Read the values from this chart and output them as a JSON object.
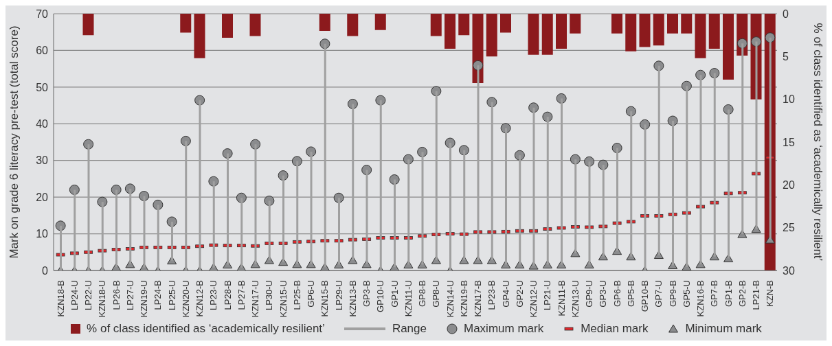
{
  "chart_data": {
    "type": "scatter",
    "ylabel": "Mark on grade 6 literacy pre-test (total score)",
    "y2label": "% of class identified as ‘academically resilient’",
    "categories": [
      "KZN18-B",
      "LP24-U",
      "LP22-U",
      "KZN18-U",
      "LP26-B",
      "LP27-U",
      "KZN19-U",
      "LP24-B",
      "LP25-U",
      "KZN20-U",
      "KZN12-B",
      "LP23-U",
      "LP28-B",
      "LP27-B",
      "KZN17-U",
      "LP30-U",
      "KZN15-U",
      "LP25-B",
      "GP6-U",
      "KZN15-B",
      "LP29-U",
      "KZN13-B",
      "GP3-B",
      "GP10-U",
      "GP1-U",
      "KZN11-U",
      "GP8-B",
      "GP8-U",
      "KZN14-U",
      "KZN19-B",
      "KZN17-B",
      "LP23-B",
      "GP4-U",
      "GP2-U",
      "KZN12-U",
      "LP21-U",
      "KZN11-B",
      "KZN13-U",
      "GP9-U",
      "GP3-U",
      "GP6-B",
      "GP5-B",
      "GP10-B",
      "GP7-U",
      "GP9-B",
      "GP5-U",
      "KZN16-B",
      "GP7-B",
      "GP1-B",
      "GP2-B",
      "LP21-B",
      "KZN-B"
    ],
    "series": [
      {
        "name": "% of class identified as ‘academically resilient’",
        "type": "bar",
        "axis": "y2",
        "color": "#8c1a1d",
        "values": [
          null,
          null,
          2.5,
          null,
          null,
          null,
          null,
          null,
          null,
          2.2,
          5.2,
          null,
          2.8,
          null,
          2.6,
          null,
          null,
          null,
          null,
          2.0,
          null,
          2.6,
          null,
          1.9,
          null,
          null,
          null,
          2.6,
          4.1,
          2.5,
          8.1,
          5.0,
          2.2,
          null,
          4.8,
          4.8,
          4.1,
          2.3,
          null,
          null,
          2.3,
          4.4,
          3.9,
          3.7,
          2.3,
          2.3,
          5.2,
          4.1,
          7.7,
          4.9,
          10.0,
          30
        ]
      },
      {
        "name": "Range",
        "type": "bar",
        "color": "#a0a0a0",
        "base": [
          0,
          0,
          0,
          0,
          0.9,
          1.7,
          0.8,
          0,
          2.7,
          0,
          0,
          0.8,
          1.6,
          0.8,
          1.7,
          2.8,
          2.3,
          1.7,
          1.7,
          0.9,
          1.6,
          2.8,
          1.7,
          0,
          0.9,
          1.6,
          1.6,
          2.8,
          0,
          2.8,
          2.8,
          2.8,
          1.6,
          1.6,
          1.3,
          1.6,
          1.6,
          4.7,
          1.6,
          3.8,
          5.3,
          3.8,
          0,
          4.2,
          1.4,
          1.0,
          1.7,
          3.8,
          3.3,
          9.9,
          11.3,
          8.4
        ],
        "values": [
          12.2,
          22,
          34.4,
          18.7,
          21.1,
          20.6,
          19.5,
          17.9,
          10.6,
          35.3,
          46.4,
          23.5,
          30.3,
          19.0,
          32.7,
          16.2,
          23.6,
          28.1,
          30.7,
          60.9,
          18.2,
          42.6,
          25.7,
          46.4,
          23.9,
          28.7,
          30.7,
          46.1,
          34.8,
          30.0,
          53.1,
          43.1,
          37.2,
          29.8,
          43.1,
          40.3,
          45.3,
          25.6,
          28.1,
          25.0,
          28.1,
          39.6,
          39.8,
          51.6,
          39.4,
          49.3,
          51.6,
          50.0,
          40.6,
          52.0,
          51.1,
          55.1
        ]
      },
      {
        "name": "Maximum mark",
        "marker": "circle",
        "color": "#8b8c8e",
        "values": [
          12.2,
          22,
          34.4,
          18.7,
          22,
          22.3,
          20.3,
          17.9,
          13.3,
          35.3,
          46.4,
          24.3,
          31.9,
          19.8,
          34.4,
          19.0,
          25.9,
          29.8,
          32.4,
          61.8,
          19.8,
          45.4,
          27.4,
          46.4,
          24.8,
          30.3,
          32.3,
          48.9,
          34.8,
          32.8,
          55.9,
          45.9,
          38.8,
          31.4,
          44.4,
          41.9,
          46.9,
          30.3,
          29.7,
          28.8,
          33.4,
          43.4,
          39.8,
          55.8,
          40.8,
          50.3,
          53.3,
          53.8,
          43.9,
          61.9,
          62.4,
          63.5
        ]
      },
      {
        "name": "Median mark",
        "color": "#e0262b",
        "values": [
          4.3,
          4.7,
          5.0,
          5.4,
          5.7,
          5.9,
          6.3,
          6.3,
          6.3,
          6.3,
          6.6,
          6.9,
          6.8,
          6.8,
          6.7,
          7.4,
          7.4,
          7.8,
          7.9,
          8.1,
          8.1,
          8.4,
          8.5,
          8.9,
          8.9,
          8.9,
          9.4,
          9.8,
          10.0,
          9.9,
          10.5,
          10.5,
          10.6,
          10.8,
          10.8,
          11.3,
          11.6,
          11.9,
          11.8,
          12.0,
          12.9,
          13.3,
          14.9,
          14.9,
          15.3,
          15.7,
          17.4,
          18.5,
          21.0,
          21.2,
          26.4,
          30.8
        ]
      },
      {
        "name": "Minimum mark",
        "marker": "triangle",
        "color": "#8b8c8e",
        "values": [
          0,
          0,
          0,
          0,
          0.9,
          1.7,
          0.8,
          0,
          2.7,
          0,
          0,
          0.8,
          1.6,
          0.8,
          1.7,
          2.8,
          2.3,
          1.7,
          1.7,
          0.9,
          1.6,
          2.8,
          1.7,
          0,
          0.9,
          1.6,
          1.6,
          2.8,
          0,
          2.8,
          2.8,
          2.8,
          1.6,
          1.6,
          1.3,
          1.6,
          1.6,
          4.7,
          1.6,
          3.8,
          5.3,
          3.8,
          0,
          4.2,
          1.4,
          1.0,
          1.7,
          3.8,
          3.3,
          9.9,
          11.3,
          8.4
        ]
      }
    ],
    "ylim": [
      0,
      70
    ],
    "yticks": [
      0,
      10,
      20,
      30,
      40,
      50,
      60,
      70
    ],
    "y2lim": [
      30,
      0
    ],
    "y2ticks": [
      0,
      5,
      10,
      15,
      20,
      25,
      30
    ],
    "grid": "y",
    "legend": "bottom"
  }
}
